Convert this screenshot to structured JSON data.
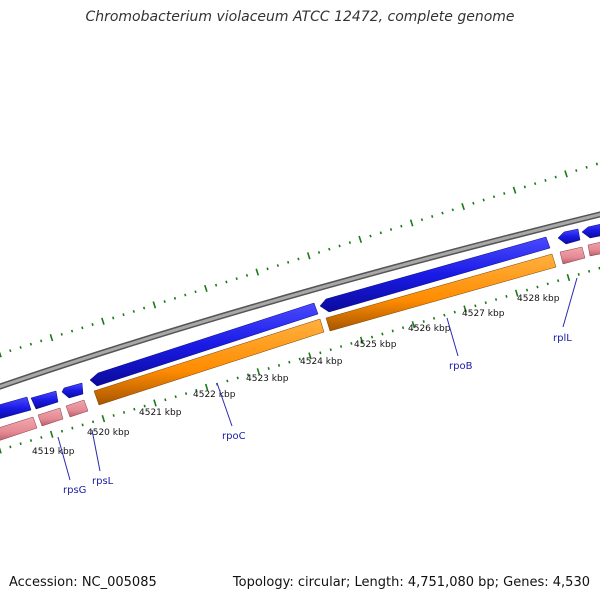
{
  "title": "Chromobacterium violaceum ATCC 12472, complete genome",
  "footer": {
    "accession": "Accession: NC_005085",
    "summary": "Topology: circular; Length: 4,751,080 bp; Genes: 4,530"
  },
  "colors": {
    "backbone": "#888888",
    "forward_cds": "#1a1ae6",
    "reverse_cds": "#ff8c00",
    "rna": "#e58a94",
    "ticks": "#1a7a1a",
    "gene_label": "#1a1aa6"
  },
  "position_ticks": [
    {
      "label": "4519 kbp"
    },
    {
      "label": "4520 kbp"
    },
    {
      "label": "4521 kbp"
    },
    {
      "label": "4522 kbp"
    },
    {
      "label": "4523 kbp"
    },
    {
      "label": "4524 kbp"
    },
    {
      "label": "4525 kbp"
    },
    {
      "label": "4526 kbp"
    },
    {
      "label": "4527 kbp"
    },
    {
      "label": "4528 kbp"
    }
  ],
  "genes": [
    {
      "name": "rpsG"
    },
    {
      "name": "rpsL"
    },
    {
      "name": "rpoC"
    },
    {
      "name": "rpoB"
    },
    {
      "name": "rplL"
    }
  ]
}
